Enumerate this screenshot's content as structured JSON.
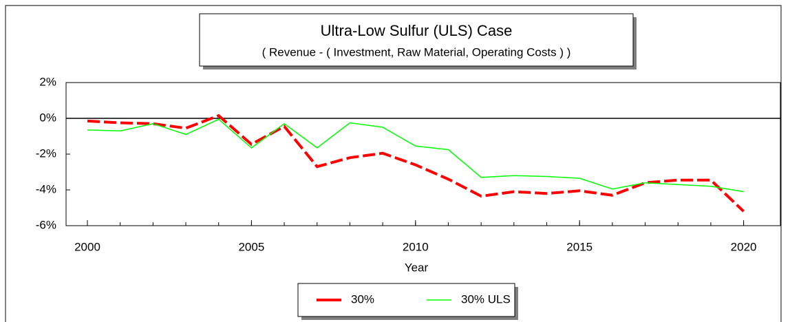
{
  "chart_data": {
    "type": "line",
    "title": "Ultra-Low Sulfur (ULS) Case",
    "subtitle": "( Revenue - ( Investment, Raw Material, Operating Costs ) )",
    "x_label": "Year",
    "x": [
      2000,
      2001,
      2002,
      2003,
      2004,
      2005,
      2006,
      2007,
      2008,
      2009,
      2010,
      2011,
      2012,
      2013,
      2014,
      2015,
      2016,
      2017,
      2018,
      2019,
      2020
    ],
    "series": [
      {
        "name": "30%",
        "color": "#ff0000",
        "dashed": true,
        "values": [
          -0.15,
          -0.25,
          -0.3,
          -0.55,
          0.15,
          -1.45,
          -0.45,
          -2.7,
          -2.2,
          -1.95,
          -2.6,
          -3.4,
          -4.35,
          -4.1,
          -4.2,
          -4.05,
          -4.3,
          -3.6,
          -3.45,
          -3.45,
          -5.2
        ]
      },
      {
        "name": "30% ULS",
        "color": "#00ff00",
        "dashed": false,
        "values": [
          -0.65,
          -0.7,
          -0.3,
          -0.9,
          -0.05,
          -1.65,
          -0.3,
          -1.65,
          -0.25,
          -0.5,
          -1.55,
          -1.75,
          -3.3,
          -3.2,
          -3.25,
          -3.35,
          -3.95,
          -3.6,
          -3.7,
          -3.8,
          -4.1
        ]
      }
    ],
    "xlim": [
      1999.35,
      2021.12
    ],
    "xticks": [
      2000,
      2005,
      2010,
      2015,
      2020
    ],
    "ylim": [
      -6,
      2
    ],
    "yticks": [
      {
        "value": -6,
        "label": "-6%"
      },
      {
        "value": -4,
        "label": "-4%"
      },
      {
        "value": -2,
        "label": "-2%"
      },
      {
        "value": 0,
        "label": "0%"
      },
      {
        "value": 2,
        "label": "2%"
      }
    ],
    "legend": "bottom"
  }
}
